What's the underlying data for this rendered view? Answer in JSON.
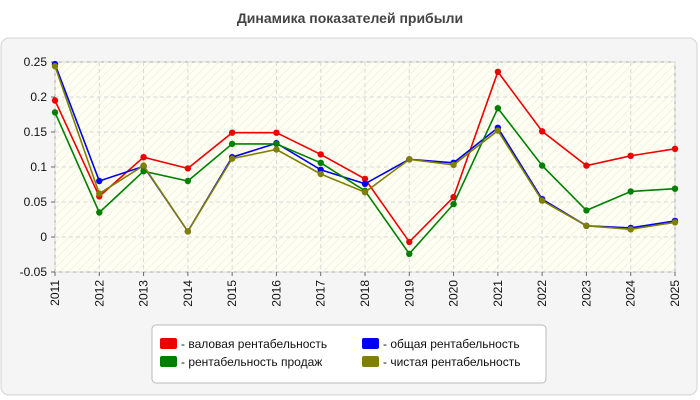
{
  "chart_data": {
    "type": "line",
    "title": "Динамика показателей прибыли",
    "xlabel": "",
    "ylabel": "",
    "x": [
      "2011",
      "2012",
      "2013",
      "2014",
      "2015",
      "2016",
      "2017",
      "2018",
      "2019",
      "2020",
      "2021",
      "2022",
      "2023",
      "2024",
      "2025"
    ],
    "ylim": [
      -0.05,
      0.25
    ],
    "yticks": [
      "0.25",
      "0.2",
      "0.15",
      "0.1",
      "0.05",
      "0",
      "-0.05"
    ],
    "grid": true,
    "legend_position": "bottom-center",
    "series": [
      {
        "name": "- валовая рентабельность",
        "color": "#ee0000",
        "values": [
          0.195,
          0.058,
          0.114,
          0.098,
          0.149,
          0.149,
          0.118,
          0.083,
          -0.007,
          0.057,
          0.236,
          0.151,
          0.102,
          0.116,
          0.126
        ]
      },
      {
        "name": "- общая рентабельность",
        "color": "#0000ee",
        "values": [
          0.247,
          0.08,
          0.101,
          0.008,
          0.114,
          0.134,
          0.096,
          0.076,
          0.111,
          0.106,
          0.156,
          0.054,
          0.016,
          0.013,
          0.023
        ]
      },
      {
        "name": "- рентабельность продаж",
        "color": "#008000",
        "values": [
          0.178,
          0.035,
          0.094,
          0.08,
          0.133,
          0.133,
          0.106,
          0.066,
          -0.024,
          0.047,
          0.184,
          0.102,
          0.038,
          0.065,
          0.069
        ]
      },
      {
        "name": "- чистая рентабельность",
        "color": "#808000",
        "values": [
          0.244,
          0.062,
          0.102,
          0.008,
          0.112,
          0.125,
          0.09,
          0.064,
          0.111,
          0.103,
          0.152,
          0.052,
          0.016,
          0.011,
          0.021
        ]
      }
    ]
  }
}
